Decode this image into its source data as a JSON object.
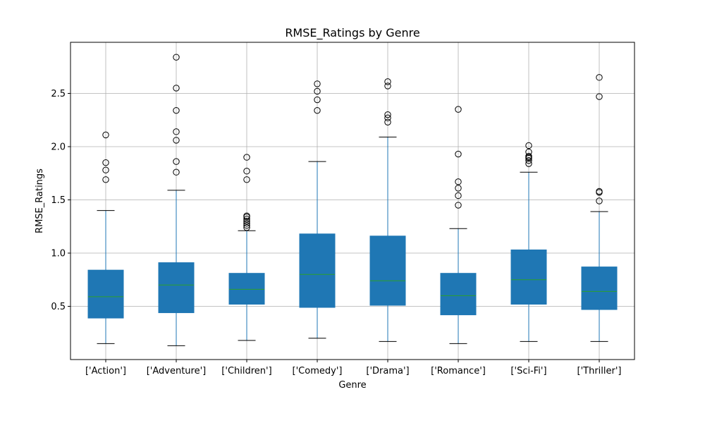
{
  "chart_data": {
    "type": "box",
    "title": "RMSE_Ratings by Genre",
    "xlabel": "Genre",
    "ylabel": "RMSE_Ratings",
    "ylim": [
      0.0,
      2.98
    ],
    "yticks": [
      0.5,
      1.0,
      1.5,
      2.0,
      2.5
    ],
    "ytick_labels": [
      "0.5",
      "1.0",
      "1.5",
      "2.0",
      "2.5"
    ],
    "grid": true,
    "colors": {
      "box": "#1f77b4",
      "median": "#2ca02c",
      "whisker": "#1f77b4",
      "cap": "#000000",
      "grid": "#b0b0b0"
    },
    "categories": [
      "['Action']",
      "['Adventure']",
      "['Children']",
      "['Comedy']",
      "['Drama']",
      "['Romance']",
      "['Sci-Fi']",
      "['Thriller']"
    ],
    "boxes": [
      {
        "whislo": 0.15,
        "q1": 0.39,
        "med": 0.59,
        "q3": 0.84,
        "whishi": 1.4,
        "fliers": [
          1.69,
          1.78,
          1.85,
          2.11
        ]
      },
      {
        "whislo": 0.13,
        "q1": 0.44,
        "med": 0.7,
        "q3": 0.91,
        "whishi": 1.59,
        "fliers": [
          1.76,
          1.86,
          2.06,
          2.14,
          2.34,
          2.55,
          2.84
        ]
      },
      {
        "whislo": 0.18,
        "q1": 0.52,
        "med": 0.66,
        "q3": 0.81,
        "whishi": 1.21,
        "fliers": [
          1.24,
          1.26,
          1.28,
          1.3,
          1.32,
          1.34,
          1.35,
          1.69,
          1.77,
          1.9
        ]
      },
      {
        "whislo": 0.2,
        "q1": 0.49,
        "med": 0.8,
        "q3": 1.18,
        "whishi": 1.86,
        "fliers": [
          2.34,
          2.44,
          2.52,
          2.59
        ]
      },
      {
        "whislo": 0.17,
        "q1": 0.51,
        "med": 0.74,
        "q3": 1.16,
        "whishi": 2.09,
        "fliers": [
          2.23,
          2.27,
          2.3,
          2.57,
          2.61
        ]
      },
      {
        "whislo": 0.15,
        "q1": 0.42,
        "med": 0.6,
        "q3": 0.81,
        "whishi": 1.23,
        "fliers": [
          1.45,
          1.54,
          1.61,
          1.67,
          1.93,
          2.35
        ]
      },
      {
        "whislo": 0.17,
        "q1": 0.52,
        "med": 0.75,
        "q3": 1.03,
        "whishi": 1.76,
        "fliers": [
          1.84,
          1.87,
          1.89,
          1.9,
          1.91,
          1.95,
          2.01
        ]
      },
      {
        "whislo": 0.17,
        "q1": 0.47,
        "med": 0.64,
        "q3": 0.87,
        "whishi": 1.39,
        "fliers": [
          1.49,
          1.57,
          1.58,
          2.47,
          2.65
        ]
      }
    ]
  }
}
